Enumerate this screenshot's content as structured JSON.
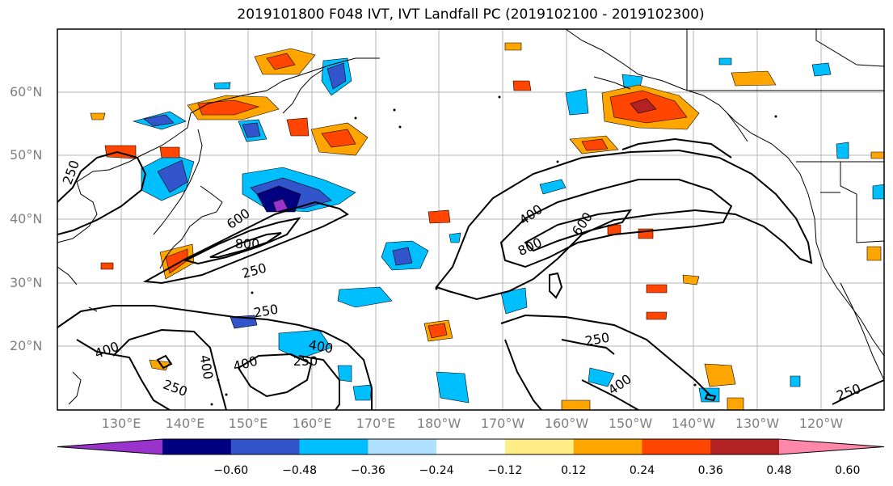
{
  "title": "2019101800 F048 IVT, IVT Landfall PC (2019102100 - 2019102300)",
  "lat_labels": [
    "60°N",
    "50°N",
    "40°N",
    "30°N",
    "20°N"
  ],
  "lon_labels": [
    "130°E",
    "140°E",
    "150°E",
    "160°E",
    "170°E",
    "180°W",
    "170°W",
    "160°W",
    "150°W",
    "140°W",
    "130°W",
    "120°W"
  ],
  "contour_labels": [
    {
      "text": "250"
    },
    {
      "text": "600"
    },
    {
      "text": "800"
    },
    {
      "text": "250"
    },
    {
      "text": "400"
    },
    {
      "text": "800"
    },
    {
      "text": "600"
    },
    {
      "text": "250"
    },
    {
      "text": "400"
    },
    {
      "text": "400"
    },
    {
      "text": "250"
    },
    {
      "text": "400"
    },
    {
      "text": "250"
    },
    {
      "text": "250"
    },
    {
      "text": "400"
    },
    {
      "text": "250"
    }
  ],
  "colorbar": {
    "colors": [
      "#9933cc",
      "#000080",
      "#3355cc",
      "#00bfff",
      "#b0e0ff",
      "#ffffff",
      "#ffee88",
      "#ffa500",
      "#ff4500",
      "#b22222",
      "#ff88aa"
    ],
    "ticks": [
      "−0.60",
      "−0.48",
      "−0.36",
      "−0.24",
      "−0.12",
      "0.12",
      "0.24",
      "0.36",
      "0.48",
      "0.60"
    ]
  }
}
